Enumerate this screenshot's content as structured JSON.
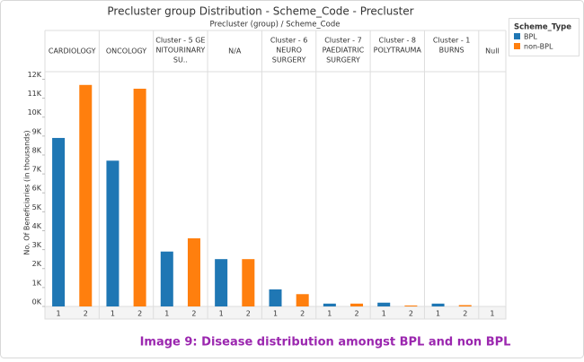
{
  "chart_data": {
    "type": "bar",
    "title": "Precluster group Distribution - Scheme_Code - Precluster",
    "header": "Precluster (group)  /  Scheme_Code",
    "ylabel": "No. Of Beneficiaries  (in thousands)",
    "categories": [
      [
        "CARDIOLOGY"
      ],
      [
        "ONCOLOGY"
      ],
      [
        "Cluster - 5 GE",
        "NITOURINARY",
        "SU.."
      ],
      [
        "N/A"
      ],
      [
        "Cluster - 6",
        "NEURO",
        "SURGERY"
      ],
      [
        "Cluster - 7",
        "PAEDIATRIC",
        "SURGERY"
      ],
      [
        "Cluster - 8",
        "POLYTRAUMA"
      ],
      [
        "Cluster - 1",
        "BURNS"
      ],
      [
        "Null"
      ]
    ],
    "sublabels": [
      [
        "1",
        "2"
      ],
      [
        "1",
        "2"
      ],
      [
        "1",
        "2"
      ],
      [
        "1",
        "2"
      ],
      [
        "1",
        "2"
      ],
      [
        "1",
        "2"
      ],
      [
        "1",
        "2"
      ],
      [
        "1",
        "2"
      ],
      [
        "1"
      ]
    ],
    "legend_title": "Scheme_Type",
    "series": [
      {
        "name": "BPL",
        "color": "#1f77b4",
        "values": [
          8.9,
          7.7,
          2.9,
          2.5,
          0.9,
          0.15,
          0.2,
          0.15,
          0
        ]
      },
      {
        "name": "non-BPL",
        "color": "#ff7f0e",
        "values": [
          11.7,
          11.5,
          3.6,
          2.5,
          0.65,
          0.15,
          0.05,
          0.07,
          null
        ]
      }
    ],
    "ylim": [
      0,
      12.4
    ],
    "yticks": [
      {
        "value": 0,
        "label": "0K"
      },
      {
        "value": 1,
        "label": "1K"
      },
      {
        "value": 2,
        "label": "2K"
      },
      {
        "value": 3,
        "label": "3K"
      },
      {
        "value": 4,
        "label": "4K"
      },
      {
        "value": 5,
        "label": "5K"
      },
      {
        "value": 6,
        "label": "6K"
      },
      {
        "value": 7,
        "label": "7K"
      },
      {
        "value": 8,
        "label": "8K"
      },
      {
        "value": 9,
        "label": "9K"
      },
      {
        "value": 10,
        "label": "10K"
      },
      {
        "value": 11,
        "label": "11K"
      },
      {
        "value": 12,
        "label": "12K"
      }
    ],
    "caption": "Image 9: Disease distribution amongst BPL and non BPL"
  }
}
